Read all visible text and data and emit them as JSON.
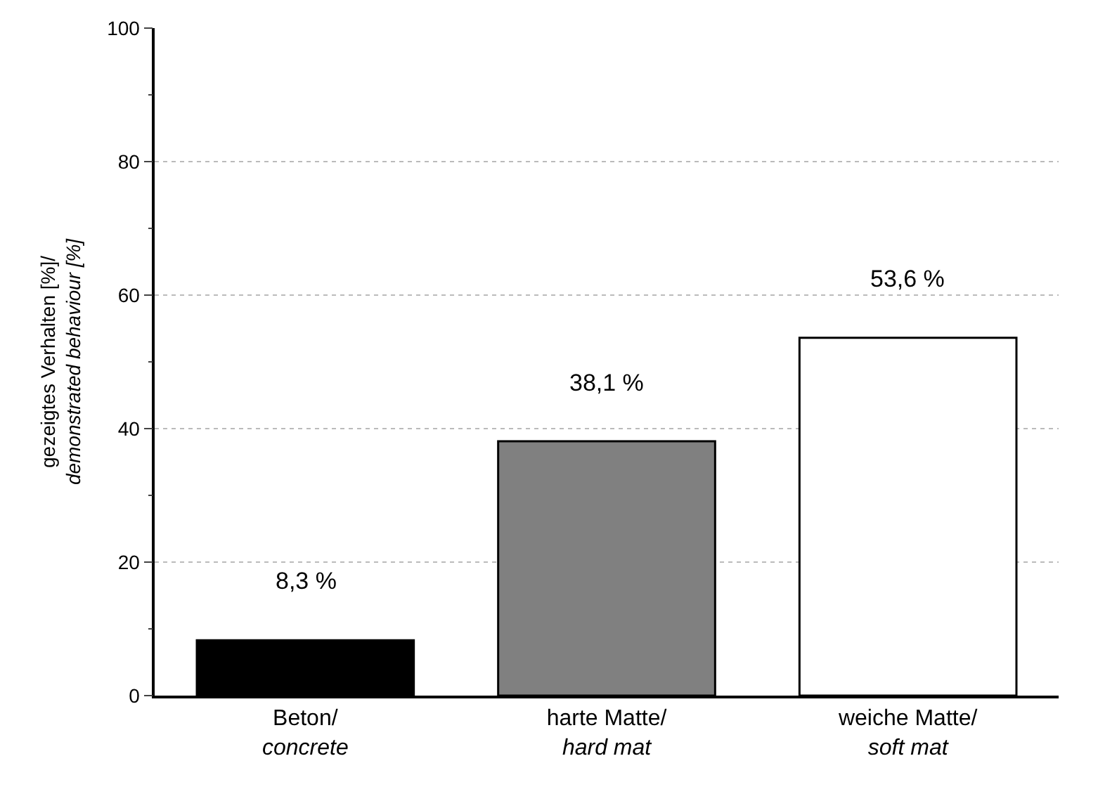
{
  "chart_data": {
    "type": "bar",
    "ylabel": "gezeigtes Verhalten [%]/\ndemonstrated behaviour [%]",
    "categories": [
      "Beton/\nconcrete",
      "harte Matte/\nhard mat",
      "weiche Matte/\nsoft mat"
    ],
    "values": [
      8.3,
      38.1,
      53.6
    ],
    "value_labels": [
      "8,3 %",
      "38,1 %",
      "53,6 %"
    ],
    "colors": [
      "#000000",
      "#808080",
      "#ffffff"
    ],
    "ylim": [
      0,
      100
    ],
    "yticks": [
      0,
      20,
      40,
      60,
      80,
      100
    ],
    "grid": "y"
  }
}
